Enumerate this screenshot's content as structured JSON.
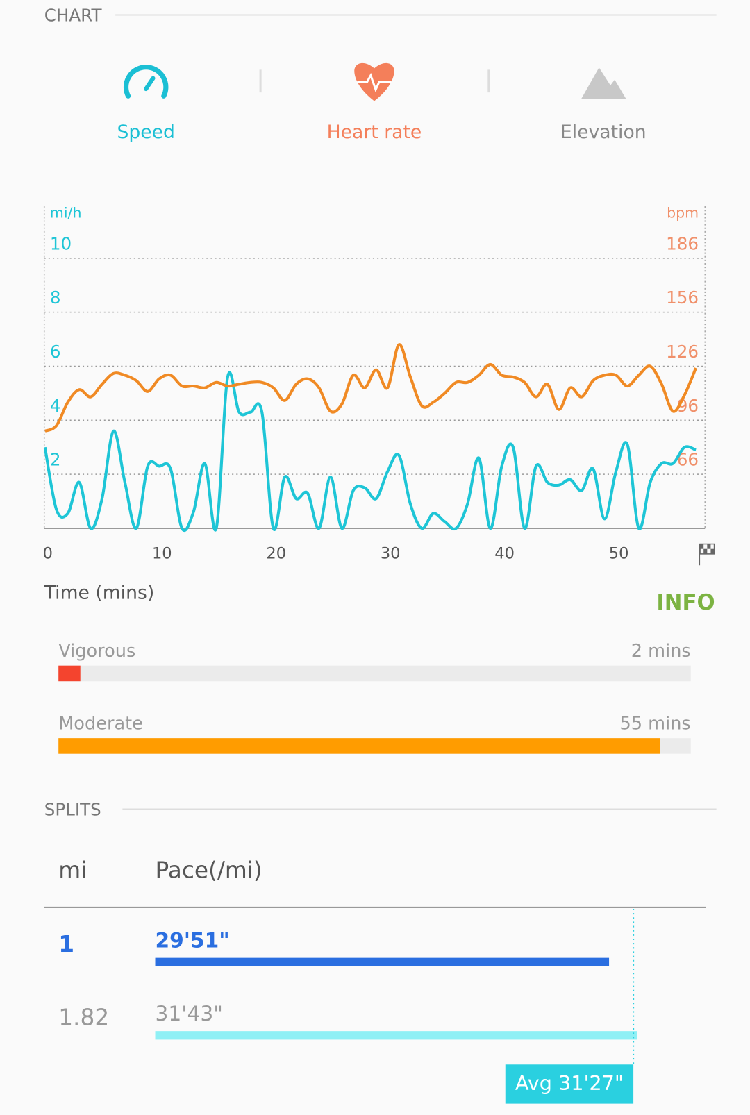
{
  "chart_section": {
    "title": "CHART"
  },
  "tabs": [
    {
      "label": "Speed",
      "color": "#1bbfd4"
    },
    {
      "label": "Heart rate",
      "color": "#f47f5a"
    },
    {
      "label": "Elevation",
      "color": "#888888"
    }
  ],
  "chart_data": {
    "type": "line",
    "x_label": "Time (mins)",
    "y_label": "mi/h",
    "y2_label": "bpm",
    "x": [
      0,
      1,
      2,
      3,
      4,
      5,
      6,
      7,
      8,
      9,
      10,
      11,
      12,
      13,
      14,
      15,
      16,
      17,
      18,
      19,
      20,
      21,
      22,
      23,
      24,
      25,
      26,
      27,
      28,
      29,
      30,
      31,
      32,
      33,
      34,
      35,
      36,
      37,
      38,
      39,
      40,
      41,
      42,
      43,
      44,
      45,
      46,
      47,
      48,
      49,
      50,
      51,
      52,
      53,
      54,
      55,
      56,
      57
    ],
    "series": [
      {
        "name": "Speed",
        "color": "#1ec5d6",
        "values": [
          3.0,
          0.7,
          0.55,
          1.7,
          0,
          1.1,
          3.6,
          1.7,
          0,
          2.3,
          2.3,
          2.2,
          0,
          0.6,
          2.4,
          0,
          5.6,
          4.3,
          4.3,
          4.3,
          0,
          1.9,
          1.1,
          1.3,
          0,
          1.9,
          0,
          1.4,
          1.5,
          1.1,
          2.1,
          2.7,
          0.9,
          0,
          0.55,
          0.25,
          0,
          0.9,
          2.6,
          0,
          2.3,
          3.0,
          0,
          2.3,
          1.7,
          1.6,
          1.8,
          1.4,
          2.2,
          0.35,
          2.1,
          3.1,
          0,
          1.7,
          2.4,
          2.4,
          3.0,
          2.9
        ]
      },
      {
        "name": "Heart rate",
        "color": "#f08a24",
        "axis": "y2",
        "values": [
          90,
          93,
          106,
          113,
          109,
          116,
          122,
          121,
          118,
          112,
          119,
          121,
          115,
          115,
          114,
          117,
          115,
          116,
          117,
          117,
          114,
          107,
          116,
          119,
          114,
          101,
          105,
          121,
          114,
          124,
          114,
          138,
          120,
          104,
          106,
          111,
          117,
          117,
          121,
          127,
          121,
          120,
          117,
          109,
          116,
          102,
          114,
          109,
          118,
          121,
          121,
          115,
          121,
          126,
          116,
          101,
          110,
          125
        ]
      }
    ],
    "xlim": [
      0,
      57.8
    ],
    "xticks": [
      0,
      10,
      20,
      30,
      40,
      50
    ],
    "ylim": [
      0,
      12
    ],
    "yticks": [
      2,
      4,
      6,
      8,
      10
    ],
    "y2lim": [
      36,
      216
    ],
    "y2ticks": [
      66,
      96,
      126,
      156,
      186
    ],
    "grid": true
  },
  "intensity": {
    "info": "INFO",
    "items": [
      {
        "name": "Vigorous",
        "value": 2,
        "label": "2 mins",
        "color": "#f4442e"
      },
      {
        "name": "Moderate",
        "value": 55,
        "label": "55 mins",
        "color": "#ff9c00"
      }
    ]
  },
  "splits": {
    "title": "SPLITS",
    "headers": [
      "mi",
      "Pace(/mi)"
    ],
    "rows": [
      {
        "mi": "1",
        "pace": {
          "value": 1791,
          "label": "29'51\""
        },
        "color": "#2a6ee0",
        "text_color": "#2a6ee0"
      },
      {
        "mi": "1.82",
        "pace": {
          "value": 1903,
          "label": "31'43\""
        },
        "color": "#8ff0f5",
        "text_color": "#999999"
      }
    ],
    "avg_label": "Avg",
    "avg": {
      "value": 1887,
      "label": "31'27\""
    }
  }
}
